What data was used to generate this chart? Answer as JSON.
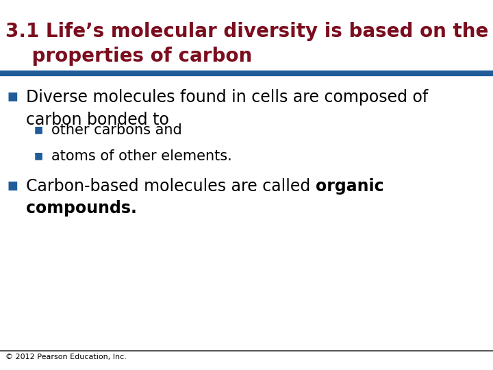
{
  "title_line1": "3.1 Life’s molecular diversity is based on the",
  "title_line2": "    properties of carbon",
  "title_color": "#7B0D1E",
  "title_fontsize": 20,
  "divider_color": "#1F5C99",
  "background_color": "#FFFFFF",
  "bullet_color": "#1F5C99",
  "bullet1_text": "Diverse molecules found in cells are composed of\ncarbon bonded to",
  "sub_bullet1_text": "other carbons and",
  "sub_bullet2_text": "atoms of other elements.",
  "bullet2_normal": "Carbon-based molecules are called ",
  "bullet2_bold1": "organic",
  "bullet2_bold2": "compounds.",
  "body_fontsize": 17,
  "sub_fontsize": 15,
  "footer_text": "© 2012 Pearson Education, Inc.",
  "footer_fontsize": 8
}
